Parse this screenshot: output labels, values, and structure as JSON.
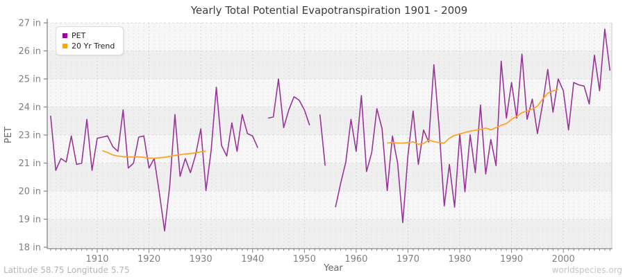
{
  "title": "Yearly Total Potential Evapotranspiration 1901 - 2009",
  "footer": {
    "left": "Latitude 58.75 Longitude 5.75",
    "right": "worldspecies.org"
  },
  "legend": {
    "pet_label": "PET",
    "trend_label": "20 Yr Trend"
  },
  "colors": {
    "pet_line": "#993399",
    "pet_swatch": "#990099",
    "trend_line": "#FFA424",
    "trend_swatch": "#FFA500",
    "axis": "#808080",
    "tick_text": "#808080",
    "title_text": "#3c3c3c",
    "axis_title_text": "#666666",
    "footer_left_text": "#b4b4b4",
    "footer_right_text": "#c4c4c4",
    "band_dark": "#efefef",
    "band_light": "#f7f7f7",
    "grid_minor": "#dddddd",
    "grid_major": "#cfcfcf",
    "grid_horizontal": "#d8d8d8"
  },
  "chart_data": {
    "type": "line",
    "title": "Yearly Total Potential Evapotranspiration 1901 - 2009",
    "xlabel": "Year",
    "ylabel": "PET",
    "grid": true,
    "legend_position": "top-left",
    "x_range": [
      1901,
      2009
    ],
    "x_tick_years": [
      1910,
      1920,
      1930,
      1940,
      1950,
      1960,
      1970,
      1980,
      1990,
      2000
    ],
    "y_tick_labels": [
      "27 in",
      "26 in",
      "25 in",
      "24 in",
      "23 in",
      "21 in",
      "20 in",
      "19 in",
      "18 in"
    ],
    "y_unit": "in",
    "series": [
      {
        "name": "PET",
        "start_year": 1901,
        "values": [
          23.45,
          21.15,
          21.65,
          21.5,
          22.6,
          21.4,
          21.45,
          23.3,
          21.15,
          22.5,
          22.55,
          22.6,
          22.15,
          21.95,
          23.7,
          21.25,
          21.45,
          22.55,
          22.6,
          21.25,
          21.65,
          20.2,
          18.6,
          20.5,
          23.5,
          20.9,
          21.65,
          21.05,
          21.8,
          22.9,
          20.3,
          22.0,
          24.65,
          22.2,
          21.75,
          23.15,
          21.95,
          23.5,
          22.7,
          22.6,
          22.1,
          null,
          23.35,
          23.4,
          25.0,
          22.95,
          23.7,
          24.25,
          24.1,
          23.7,
          23.05,
          null,
          23.5,
          21.35,
          null,
          19.6,
          20.6,
          21.5,
          23.3,
          21.95,
          24.3,
          21.1,
          21.9,
          23.75,
          22.9,
          20.3,
          22.6,
          21.45,
          18.95,
          21.8,
          23.65,
          21.4,
          22.85,
          22.35,
          25.6,
          23.0,
          19.65,
          21.4,
          19.6,
          22.7,
          20.25,
          22.65,
          21.05,
          23.9,
          21.0,
          22.45,
          21.35,
          25.75,
          23.35,
          24.85,
          23.35,
          26.05,
          23.3,
          24.15,
          22.7,
          23.95,
          25.4,
          23.6,
          25.0,
          24.5,
          22.85,
          24.85,
          24.75,
          24.7,
          23.95,
          26.0,
          24.5,
          27.1,
          25.35
        ]
      },
      {
        "name": "20 Yr Trend",
        "segments": [
          {
            "start_year": 1911,
            "values": [
              21.98,
              21.9,
              21.8,
              21.75,
              21.73,
              21.72,
              21.72,
              21.72,
              21.7,
              21.67,
              21.66,
              21.68,
              21.7,
              21.74,
              21.78,
              21.81,
              21.84,
              21.86,
              21.89,
              21.93,
              21.96
            ]
          },
          {
            "start_year": 1966,
            "values": [
              22.3,
              22.33,
              22.3,
              22.3,
              22.32,
              22.35,
              22.25,
              22.28,
              22.42,
              22.36,
              22.32,
              22.3,
              22.5,
              22.62,
              22.68,
              22.75,
              22.8,
              22.84,
              22.88,
              22.93,
              22.86,
              22.95,
              23.05,
              23.12,
              23.3,
              23.42,
              23.58,
              23.65,
              23.73,
              23.85,
              24.15,
              24.4,
              24.5,
              24.55
            ]
          }
        ]
      }
    ]
  }
}
